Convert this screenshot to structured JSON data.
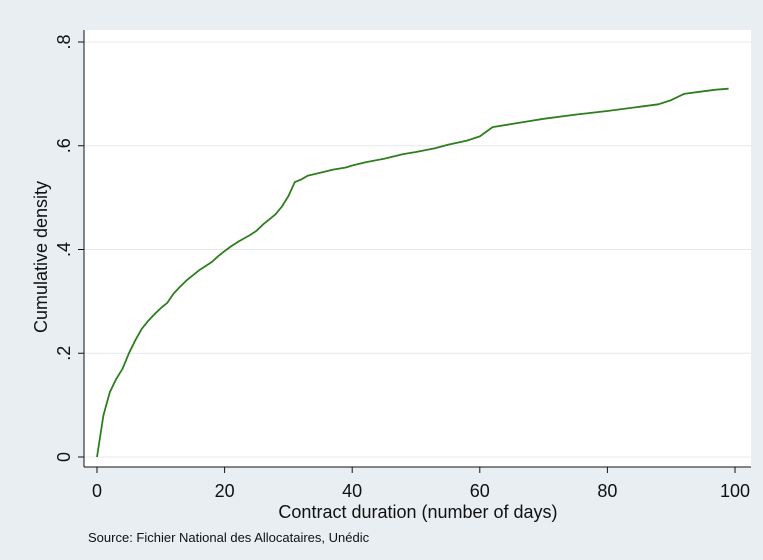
{
  "chart_data": {
    "type": "line",
    "xlabel": "Contract duration (number of days)",
    "ylabel": "Cumulative density",
    "note": "Source: Fichier National des Allocataires, Unédic",
    "xlim": [
      0,
      100
    ],
    "ylim": [
      0,
      0.8
    ],
    "x_ticks": [
      0,
      20,
      40,
      60,
      80,
      100
    ],
    "x_tick_labels": [
      "0",
      "20",
      "40",
      "60",
      "80",
      "100"
    ],
    "y_ticks": [
      0,
      0.2,
      0.4,
      0.6,
      0.8
    ],
    "y_tick_labels": [
      "0",
      ".2",
      ".4",
      ".6",
      ".8"
    ],
    "grid": true,
    "line_color": "#2e7d1f",
    "series": [
      {
        "x": [
          0,
          1,
          2,
          3,
          4,
          5,
          6,
          7,
          8,
          9,
          10,
          11,
          12,
          13,
          14,
          15,
          16,
          17,
          18,
          19,
          20,
          21,
          22,
          23,
          24,
          25,
          26,
          27,
          28,
          29,
          30,
          31,
          32,
          33,
          35,
          37,
          39,
          40,
          42,
          45,
          48,
          50,
          53,
          55,
          58,
          60,
          62,
          65,
          68,
          70,
          75,
          80,
          85,
          88,
          90,
          92,
          95,
          97,
          99
        ],
        "y": [
          0.0,
          0.08,
          0.125,
          0.15,
          0.17,
          0.2,
          0.225,
          0.247,
          0.262,
          0.275,
          0.287,
          0.297,
          0.315,
          0.328,
          0.34,
          0.35,
          0.36,
          0.368,
          0.376,
          0.387,
          0.397,
          0.406,
          0.414,
          0.421,
          0.428,
          0.436,
          0.448,
          0.458,
          0.468,
          0.483,
          0.503,
          0.53,
          0.535,
          0.542,
          0.548,
          0.554,
          0.558,
          0.562,
          0.568,
          0.575,
          0.584,
          0.588,
          0.595,
          0.602,
          0.61,
          0.618,
          0.636,
          0.642,
          0.648,
          0.652,
          0.66,
          0.667,
          0.675,
          0.68,
          0.688,
          0.7,
          0.705,
          0.708,
          0.71
        ]
      }
    ]
  }
}
